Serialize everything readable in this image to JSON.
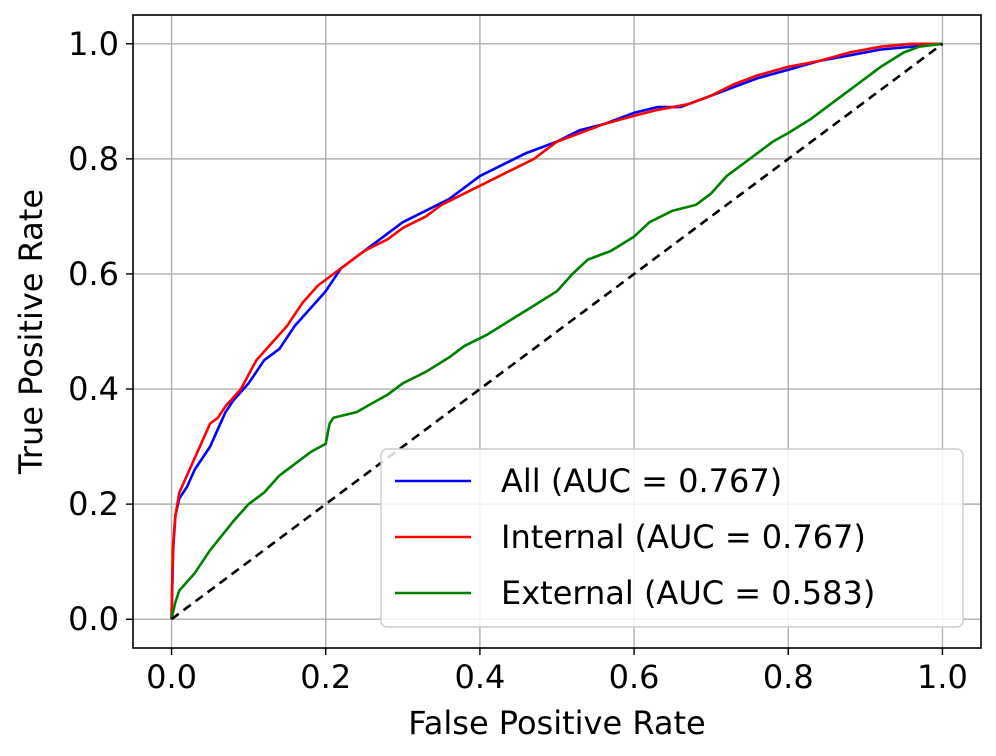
{
  "chart_data": {
    "type": "line",
    "title": "",
    "xlabel": "False Positive Rate",
    "ylabel": "True Positive Rate",
    "xlim": [
      -0.05,
      1.05
    ],
    "ylim": [
      -0.05,
      1.05
    ],
    "grid": true,
    "legend_placement": "lower-right",
    "xticks": [
      0.0,
      0.2,
      0.4,
      0.6,
      0.8,
      1.0
    ],
    "yticks": [
      0.0,
      0.2,
      0.4,
      0.6,
      0.8,
      1.0
    ],
    "xtick_labels": [
      "0.0",
      "0.2",
      "0.4",
      "0.6",
      "0.8",
      "1.0"
    ],
    "ytick_labels": [
      "0.0",
      "0.2",
      "0.4",
      "0.6",
      "0.8",
      "1.0"
    ],
    "series": [
      {
        "name": "All (AUC = 0.767)",
        "color": "#0000ff",
        "points": [
          [
            0,
            0
          ],
          [
            0.002,
            0.12
          ],
          [
            0.005,
            0.18
          ],
          [
            0.01,
            0.21
          ],
          [
            0.02,
            0.23
          ],
          [
            0.03,
            0.26
          ],
          [
            0.04,
            0.28
          ],
          [
            0.05,
            0.3
          ],
          [
            0.06,
            0.33
          ],
          [
            0.07,
            0.36
          ],
          [
            0.08,
            0.38
          ],
          [
            0.1,
            0.41
          ],
          [
            0.12,
            0.45
          ],
          [
            0.14,
            0.47
          ],
          [
            0.16,
            0.51
          ],
          [
            0.18,
            0.54
          ],
          [
            0.2,
            0.57
          ],
          [
            0.22,
            0.61
          ],
          [
            0.24,
            0.63
          ],
          [
            0.26,
            0.65
          ],
          [
            0.28,
            0.67
          ],
          [
            0.3,
            0.69
          ],
          [
            0.33,
            0.71
          ],
          [
            0.36,
            0.73
          ],
          [
            0.38,
            0.75
          ],
          [
            0.4,
            0.77
          ],
          [
            0.43,
            0.79
          ],
          [
            0.46,
            0.81
          ],
          [
            0.5,
            0.83
          ],
          [
            0.53,
            0.85
          ],
          [
            0.56,
            0.86
          ],
          [
            0.6,
            0.88
          ],
          [
            0.63,
            0.89
          ],
          [
            0.66,
            0.89
          ],
          [
            0.7,
            0.91
          ],
          [
            0.73,
            0.925
          ],
          [
            0.76,
            0.94
          ],
          [
            0.8,
            0.955
          ],
          [
            0.84,
            0.97
          ],
          [
            0.88,
            0.98
          ],
          [
            0.92,
            0.99
          ],
          [
            0.96,
            0.995
          ],
          [
            1.0,
            1.0
          ]
        ]
      },
      {
        "name": "Internal (AUC = 0.767)",
        "color": "#ff0000",
        "points": [
          [
            0,
            0
          ],
          [
            0.002,
            0.13
          ],
          [
            0.005,
            0.18
          ],
          [
            0.01,
            0.22
          ],
          [
            0.02,
            0.25
          ],
          [
            0.03,
            0.28
          ],
          [
            0.04,
            0.31
          ],
          [
            0.05,
            0.34
          ],
          [
            0.06,
            0.35
          ],
          [
            0.07,
            0.37
          ],
          [
            0.09,
            0.4
          ],
          [
            0.11,
            0.45
          ],
          [
            0.13,
            0.48
          ],
          [
            0.15,
            0.51
          ],
          [
            0.17,
            0.55
          ],
          [
            0.19,
            0.58
          ],
          [
            0.21,
            0.6
          ],
          [
            0.23,
            0.62
          ],
          [
            0.25,
            0.64
          ],
          [
            0.28,
            0.66
          ],
          [
            0.3,
            0.68
          ],
          [
            0.33,
            0.7
          ],
          [
            0.35,
            0.72
          ],
          [
            0.38,
            0.74
          ],
          [
            0.41,
            0.76
          ],
          [
            0.44,
            0.78
          ],
          [
            0.47,
            0.8
          ],
          [
            0.5,
            0.83
          ],
          [
            0.53,
            0.845
          ],
          [
            0.56,
            0.86
          ],
          [
            0.6,
            0.875
          ],
          [
            0.63,
            0.885
          ],
          [
            0.67,
            0.895
          ],
          [
            0.7,
            0.91
          ],
          [
            0.73,
            0.93
          ],
          [
            0.76,
            0.945
          ],
          [
            0.8,
            0.96
          ],
          [
            0.84,
            0.97
          ],
          [
            0.88,
            0.985
          ],
          [
            0.92,
            0.995
          ],
          [
            0.96,
            1.0
          ],
          [
            1.0,
            1.0
          ]
        ]
      },
      {
        "name": "External (AUC = 0.583)",
        "color": "#008000",
        "points": [
          [
            0,
            0
          ],
          [
            0.005,
            0.03
          ],
          [
            0.01,
            0.05
          ],
          [
            0.03,
            0.08
          ],
          [
            0.05,
            0.12
          ],
          [
            0.08,
            0.17
          ],
          [
            0.1,
            0.2
          ],
          [
            0.12,
            0.22
          ],
          [
            0.14,
            0.25
          ],
          [
            0.16,
            0.27
          ],
          [
            0.18,
            0.29
          ],
          [
            0.2,
            0.305
          ],
          [
            0.205,
            0.34
          ],
          [
            0.21,
            0.35
          ],
          [
            0.24,
            0.36
          ],
          [
            0.26,
            0.375
          ],
          [
            0.28,
            0.39
          ],
          [
            0.3,
            0.41
          ],
          [
            0.33,
            0.43
          ],
          [
            0.36,
            0.455
          ],
          [
            0.38,
            0.475
          ],
          [
            0.41,
            0.495
          ],
          [
            0.44,
            0.52
          ],
          [
            0.47,
            0.545
          ],
          [
            0.5,
            0.57
          ],
          [
            0.52,
            0.6
          ],
          [
            0.54,
            0.625
          ],
          [
            0.57,
            0.64
          ],
          [
            0.6,
            0.665
          ],
          [
            0.62,
            0.69
          ],
          [
            0.65,
            0.71
          ],
          [
            0.68,
            0.72
          ],
          [
            0.7,
            0.74
          ],
          [
            0.72,
            0.77
          ],
          [
            0.75,
            0.8
          ],
          [
            0.78,
            0.83
          ],
          [
            0.8,
            0.845
          ],
          [
            0.83,
            0.87
          ],
          [
            0.86,
            0.9
          ],
          [
            0.89,
            0.93
          ],
          [
            0.92,
            0.96
          ],
          [
            0.95,
            0.985
          ],
          [
            0.97,
            0.995
          ],
          [
            1.0,
            1.0
          ]
        ]
      },
      {
        "name": "",
        "color": "#000000",
        "dashed": true,
        "points": [
          [
            0,
            0
          ],
          [
            1,
            1
          ]
        ]
      }
    ]
  }
}
